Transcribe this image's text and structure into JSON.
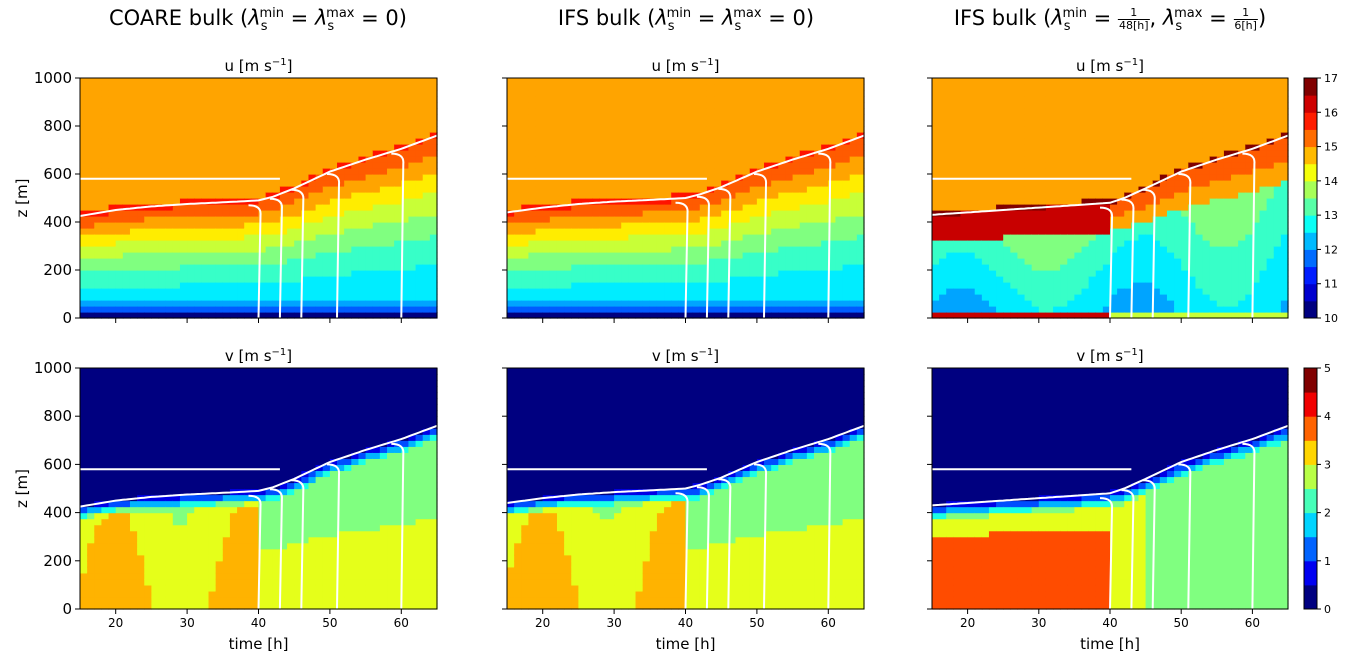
{
  "figure": {
    "titles": [
      {
        "prefix": "COARE bulk (",
        "lam": "λ",
        "sub": "s",
        "min": "min",
        "eq1": " = ",
        "lam2": "λ",
        "sub2": "s",
        "max": "max",
        "tail": " = 0)"
      },
      {
        "prefix": "IFS bulk (",
        "lam": "λ",
        "sub": "s",
        "min": "min",
        "eq1": " = ",
        "lam2": "λ",
        "sub2": "s",
        "max": "max",
        "tail": " = 0)"
      },
      {
        "prefix": "IFS bulk (",
        "lam": "λ",
        "sub": "s",
        "min": "min",
        "eq1": " = ",
        "num1": "1",
        "den1": "48[h]",
        "sep": ", ",
        "lam2": "λ",
        "sub2": "s",
        "max": "max",
        "eq2": " = ",
        "num2": "1",
        "den2": "6[h]",
        "tail": ")"
      }
    ]
  },
  "chart_data": {
    "type": "heatmap",
    "xlabel": "time [h]",
    "ylabel": "z [m]",
    "xlim": [
      15,
      65
    ],
    "ylim": [
      0,
      1000
    ],
    "xticks": [
      20,
      30,
      40,
      50,
      60
    ],
    "yticks": [
      0,
      200,
      400,
      600,
      800,
      1000
    ],
    "rows": [
      {
        "title": "u [m s",
        "title_sup": "−1",
        "title_end": "]",
        "colorbar": {
          "min": 10,
          "max": 17,
          "ticks": [
            10,
            11,
            12,
            13,
            14,
            15,
            16,
            17
          ]
        }
      },
      {
        "title": "v [m s",
        "title_sup": "−1",
        "title_end": "]",
        "colorbar": {
          "min": 0,
          "max": 5,
          "ticks": [
            0,
            1,
            2,
            3,
            4,
            5
          ]
        }
      }
    ],
    "panels": [
      {
        "row": 0,
        "col": 0,
        "case": "coare",
        "free_value": 15.0,
        "jet_value": 16.6,
        "surface_value": 10.2
      },
      {
        "row": 0,
        "col": 1,
        "case": "ifs0",
        "free_value": 15.0,
        "jet_value": 16.4,
        "surface_value": 10.2
      },
      {
        "row": 0,
        "col": 2,
        "case": "ifsl",
        "free_value": 15.0,
        "jet_value": 17.0,
        "surface_value": 16.5
      },
      {
        "row": 1,
        "col": 0,
        "case": "coare",
        "free_value": 0.0,
        "jet_value": 3.8,
        "surface_value": 3.0
      },
      {
        "row": 1,
        "col": 1,
        "case": "ifs0",
        "free_value": 0.0,
        "jet_value": 3.8,
        "surface_value": 3.0
      },
      {
        "row": 1,
        "col": 2,
        "case": "ifsl",
        "free_value": 0.0,
        "jet_value": 4.0,
        "surface_value": 3.0
      }
    ],
    "boundary_layer_top": [
      {
        "case": "coare",
        "t": [
          15,
          20,
          25,
          30,
          35,
          40,
          42,
          45,
          50,
          55,
          60,
          65
        ],
        "z": [
          425,
          450,
          465,
          475,
          482,
          490,
          505,
          540,
          610,
          660,
          705,
          760
        ]
      },
      {
        "case": "ifs0",
        "t": [
          15,
          20,
          25,
          30,
          35,
          40,
          42,
          45,
          50,
          55,
          60,
          65
        ],
        "z": [
          440,
          460,
          475,
          485,
          492,
          500,
          515,
          545,
          610,
          660,
          705,
          760
        ]
      },
      {
        "case": "ifsl",
        "t": [
          15,
          20,
          25,
          30,
          35,
          40,
          42,
          45,
          50,
          55,
          60,
          65
        ],
        "z": [
          430,
          440,
          450,
          460,
          470,
          480,
          500,
          540,
          610,
          660,
          705,
          760
        ]
      }
    ],
    "contours_note": "white contour lines overlaid"
  }
}
